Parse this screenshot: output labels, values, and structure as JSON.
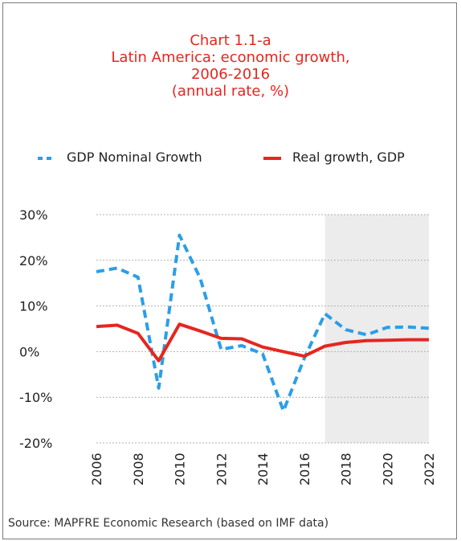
{
  "title": {
    "line1": "Chart 1.1-a",
    "line2": "Latin America: economic growth,",
    "line3": "2006-2016",
    "line4": "(annual rate, %)"
  },
  "legend": {
    "nominal": "GDP Nominal Growth",
    "real": "Real growth, GDP"
  },
  "source": "Source: MAPFRE Economic Research (based on IMF data)",
  "colors": {
    "title": "#e5261f",
    "nominal": "#2b9ee8",
    "real": "#e5261f",
    "shade": "#ececec",
    "frame": "#7a7a7a"
  },
  "chart_data": {
    "type": "line",
    "x": [
      2006,
      2007,
      2008,
      2009,
      2010,
      2011,
      2012,
      2013,
      2014,
      2015,
      2016,
      2017,
      2018,
      2019,
      2020,
      2021,
      2022
    ],
    "series": [
      {
        "name": "GDP Nominal Growth",
        "style": "dashed",
        "values": [
          17.5,
          18.3,
          16.3,
          -8.0,
          25.5,
          16.0,
          0.5,
          1.3,
          -0.5,
          -13.0,
          -1.5,
          8.3,
          4.8,
          3.7,
          5.3,
          5.4,
          5.1
        ]
      },
      {
        "name": "Real growth, GDP",
        "style": "solid",
        "values": [
          5.5,
          5.8,
          4.0,
          -2.0,
          6.0,
          4.5,
          2.9,
          2.8,
          1.0,
          0.0,
          -1.0,
          1.2,
          2.0,
          2.4,
          2.5,
          2.6,
          2.6
        ]
      }
    ],
    "ylim": [
      -20,
      30
    ],
    "yticks": [
      30,
      20,
      10,
      0,
      -10,
      -20
    ],
    "ytick_labels": [
      "30%",
      "20%",
      "10%",
      "0%",
      "-10%",
      "-20%"
    ],
    "xticks": [
      2006,
      2008,
      2010,
      2012,
      2014,
      2016,
      2018,
      2020,
      2022
    ],
    "xtick_labels": [
      "2006",
      "2008",
      "2010",
      "2012",
      "2014",
      "2016",
      "2018",
      "2020",
      "2022"
    ],
    "shaded_from": 2017,
    "grid": "horizontal dotted",
    "legend_position": "top"
  }
}
